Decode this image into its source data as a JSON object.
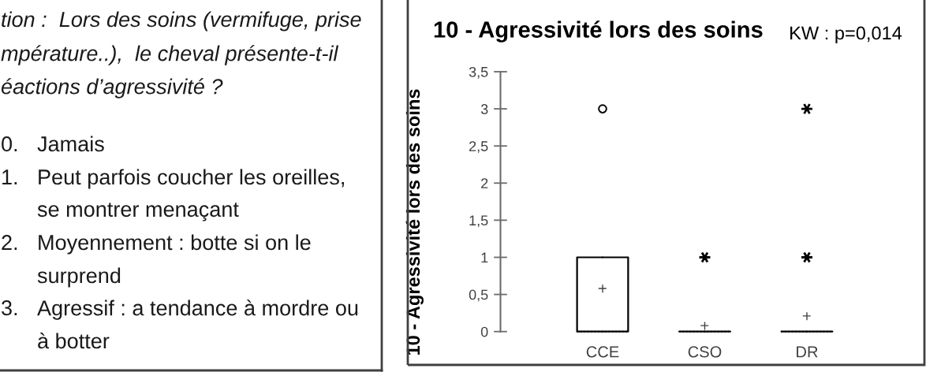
{
  "chart_data": [
    {
      "type": "other",
      "annotations": [
        "tion :  Lors des soins (vermifuge, prise",
        "mpérature..),  le cheval présente-t-il",
        "éactions d’agressivité ?",
        "0.",
        "Jamais",
        "1.",
        "Peut parfois coucher les oreilles,",
        "se montrer menaçant",
        "2.",
        "Moyennement : botte si on le",
        "surprend",
        "3.",
        "Agressif : a tendance à mordre ou",
        "à botter"
      ]
    },
    {
      "type": "box",
      "title": "10 - Agressivité lors des soins",
      "ylabel": "10 - Agressivité lors des soins",
      "annotations": [
        "KW : p=0,014"
      ],
      "categories": [
        "CCE",
        "CSO",
        "DR"
      ],
      "boxes": [
        {
          "low": 0,
          "q1": 0,
          "median": 0,
          "q3": 1,
          "high": 1,
          "mean": 0.58
        },
        {
          "low": 0,
          "q1": 0,
          "median": 0,
          "q3": 0,
          "high": 0,
          "mean": 0.08
        },
        {
          "low": 0,
          "q1": 0,
          "median": 0,
          "q3": 0,
          "high": 0,
          "mean": 0.21
        }
      ],
      "series": [
        {
          "type": "scatter",
          "marker": "circle",
          "color": "#000000",
          "x": [
            "CCE"
          ],
          "values": [
            3
          ]
        },
        {
          "type": "scatter",
          "marker": "cross",
          "color": "#000000",
          "x": [
            "CSO",
            "DR",
            "DR"
          ],
          "values": [
            1,
            1,
            3
          ]
        }
      ],
      "ylim": [
        0,
        3.5
      ],
      "yticks": [
        0,
        {
          "value": 0.5,
          "label": "0,5"
        },
        1,
        {
          "value": 1.5,
          "label": "1,5"
        },
        2,
        {
          "value": 2.5,
          "label": "2,5"
        },
        3,
        {
          "value": 3.5,
          "label": "3,5"
        }
      ]
    }
  ]
}
